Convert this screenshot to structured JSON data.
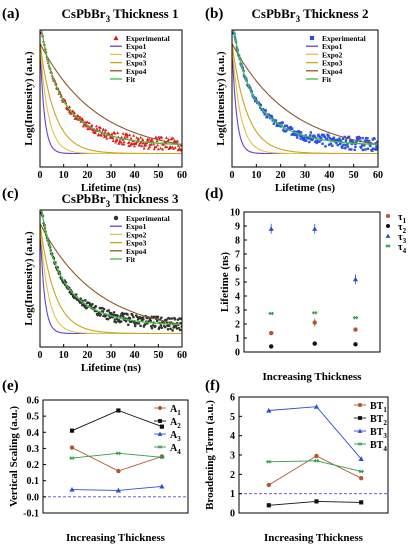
{
  "chart_data": [
    {
      "type": "scatter",
      "panel_label": "(a)",
      "title": "CsPbBr3 Thickness 1",
      "title_main": "CsPbBr",
      "title_sub": "3",
      "title_rest": " Thickness 1",
      "xlabel": "Lifetime (ns)",
      "ylabel": "Log(Intensity) (a.u.)",
      "xlim": [
        0,
        60
      ],
      "xticks": [
        "0",
        "10",
        "20",
        "30",
        "40",
        "50",
        "60"
      ],
      "log_y": true,
      "legend_position": "top-right",
      "series": [
        {
          "name": "Experimental",
          "marker": "triangle",
          "color": "#e31a1c"
        },
        {
          "name": "Expo1",
          "color": "#6a3fd3"
        },
        {
          "name": "Expo2",
          "color": "#e0c34a"
        },
        {
          "name": "Expo3",
          "color": "#c9a51c"
        },
        {
          "name": "Expo4",
          "color": "#8a5a2b"
        },
        {
          "name": "Fit",
          "color": "#3fbf3f"
        }
      ]
    },
    {
      "type": "scatter",
      "panel_label": "(b)",
      "title": "CsPbBr3 Thickness 2",
      "title_main": "CsPbBr",
      "title_sub": "3",
      "title_rest": " Thickness 2",
      "xlabel": "Lifetime (ns)",
      "ylabel": "Log(Intensity) (a.u.)",
      "xlim": [
        0,
        60
      ],
      "xticks": [
        "0",
        "10",
        "20",
        "30",
        "40",
        "50",
        "60"
      ],
      "log_y": true,
      "legend_position": "top-right",
      "series": [
        {
          "name": "Experimental",
          "marker": "square",
          "color": "#2b50e8"
        },
        {
          "name": "Expo1",
          "color": "#6a3fd3"
        },
        {
          "name": "Expo2",
          "color": "#e0c34a"
        },
        {
          "name": "Expo3",
          "color": "#c9a51c"
        },
        {
          "name": "Expo4",
          "color": "#8a5a2b"
        },
        {
          "name": "Fit",
          "color": "#3fbf3f"
        }
      ]
    },
    {
      "type": "scatter",
      "panel_label": "(c)",
      "title": "CsPbBr3 Thickness 3",
      "title_main": "CsPbBr",
      "title_sub": "3",
      "title_rest": " Thickness 3",
      "xlabel": "Lifetime (ns)",
      "ylabel": "Log(Intensity) (a.u.)",
      "xlim": [
        0,
        60
      ],
      "xticks": [
        "0",
        "10",
        "20",
        "30",
        "40",
        "50",
        "60"
      ],
      "log_y": true,
      "legend_position": "top-right",
      "series": [
        {
          "name": "Experimental",
          "marker": "circle",
          "color": "#333333"
        },
        {
          "name": "Expo1",
          "color": "#6a3fd3"
        },
        {
          "name": "Expo2",
          "color": "#e0c34a"
        },
        {
          "name": "Expo3",
          "color": "#c9a51c"
        },
        {
          "name": "Expo4",
          "color": "#8a5a2b"
        },
        {
          "name": "Fit",
          "color": "#3fbf3f"
        }
      ]
    },
    {
      "type": "scatter",
      "panel_label": "(d)",
      "xlabel": "Increasing Thickness",
      "ylabel": "Lifetime (ns)",
      "ylim": [
        0,
        10
      ],
      "yticks": [
        "0",
        "1",
        "2",
        "3",
        "4",
        "5",
        "6",
        "7",
        "8",
        "9",
        "10"
      ],
      "legend_position": "right",
      "series": [
        {
          "name": "τ1",
          "name_main": "τ",
          "name_sub": "1",
          "color": "#b5562f",
          "marker": "circle",
          "values": [
            1.35,
            2.1,
            1.6
          ]
        },
        {
          "name": "τ2",
          "name_main": "τ",
          "name_sub": "2",
          "color": "#111111",
          "marker": "circle",
          "values": [
            0.4,
            0.6,
            0.55
          ]
        },
        {
          "name": "τ3",
          "name_main": "τ",
          "name_sub": "3",
          "color": "#2b4fd6",
          "marker": "triangle",
          "values": [
            8.8,
            8.8,
            5.2
          ]
        },
        {
          "name": "τ4",
          "name_main": "τ",
          "name_sub": "4",
          "color": "#2e9e4a",
          "marker": "cross",
          "values": [
            2.75,
            2.8,
            2.45
          ]
        }
      ]
    },
    {
      "type": "line",
      "panel_label": "(e)",
      "xlabel": "Increasing Thickness",
      "ylabel": "Vertical Scaling (a.u.)",
      "ylim": [
        -0.1,
        0.6
      ],
      "yticks": [
        "-0.1",
        "0.0",
        "0.1",
        "0.2",
        "0.3",
        "0.4",
        "0.5",
        "0.6"
      ],
      "reference_line": 0.0,
      "legend_position": "top-right",
      "series": [
        {
          "name": "A1",
          "name_main": "A",
          "name_sub": "1",
          "color": "#b5562f",
          "marker": "circle",
          "values": [
            0.305,
            0.16,
            0.25
          ]
        },
        {
          "name": "A2",
          "name_main": "A",
          "name_sub": "2",
          "color": "#111111",
          "marker": "square",
          "values": [
            0.41,
            0.535,
            0.435
          ]
        },
        {
          "name": "A3",
          "name_main": "A",
          "name_sub": "3",
          "color": "#2b4fd6",
          "marker": "triangle",
          "values": [
            0.045,
            0.04,
            0.065
          ]
        },
        {
          "name": "A4",
          "name_main": "A",
          "name_sub": "4",
          "color": "#2e9e4a",
          "marker": "cross",
          "values": [
            0.24,
            0.27,
            0.245
          ]
        }
      ]
    },
    {
      "type": "line",
      "panel_label": "(f)",
      "xlabel": "Increasing Thickness",
      "ylabel": "Broadening Term (a.u.)",
      "ylim": [
        0,
        6
      ],
      "yticks": [
        "0",
        "1",
        "2",
        "3",
        "4",
        "5",
        "6"
      ],
      "reference_line": 1.0,
      "legend_position": "top-right",
      "series": [
        {
          "name": "BT1",
          "name_main": "BT",
          "name_sub": "1",
          "color": "#b5562f",
          "marker": "circle",
          "values": [
            1.45,
            2.95,
            1.8
          ]
        },
        {
          "name": "BT2",
          "name_main": "BT",
          "name_sub": "2",
          "color": "#111111",
          "marker": "square",
          "values": [
            0.4,
            0.6,
            0.55
          ]
        },
        {
          "name": "BT3",
          "name_main": "BT",
          "name_sub": "3",
          "color": "#2b4fd6",
          "marker": "triangle",
          "values": [
            5.3,
            5.5,
            2.8
          ]
        },
        {
          "name": "BT4",
          "name_main": "BT",
          "name_sub": "4",
          "color": "#2e9e4a",
          "marker": "cross",
          "values": [
            2.65,
            2.7,
            2.15
          ]
        }
      ]
    }
  ]
}
